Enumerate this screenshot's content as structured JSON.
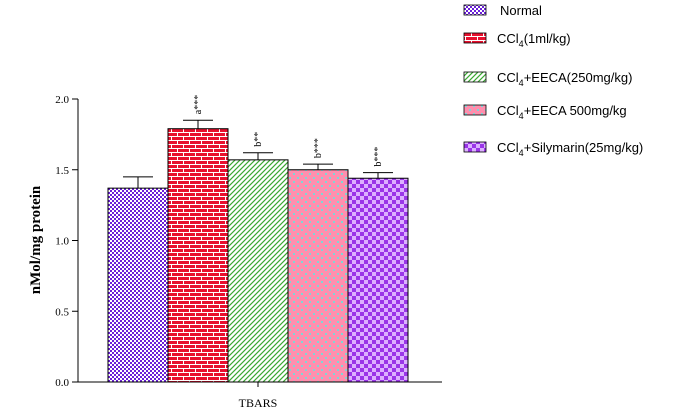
{
  "chart_data": {
    "type": "bar",
    "ylabel": "nMol/mg protein",
    "xlabel": "",
    "categories": [
      "TBARS"
    ],
    "ylim": [
      0,
      2.0
    ],
    "yticks": [
      "0.0",
      "0.5",
      "1.0",
      "1.5",
      "2.0"
    ],
    "grid": false,
    "legend_position": "top-right",
    "series": [
      {
        "name": "Normal",
        "name_parts": [
          "Normal",
          "",
          ""
        ],
        "value": 1.37,
        "error": 0.08,
        "significance": "",
        "color": "#6a1fd8",
        "pattern": "checker"
      },
      {
        "name": "CCl4(1ml/kg)",
        "name_parts": [
          "CCl",
          "4",
          "(1ml/kg)"
        ],
        "value": 1.79,
        "error": 0.06,
        "significance": "a***",
        "color": "#e8102e",
        "pattern": "brick"
      },
      {
        "name": "CCl4+EECA(250mg/kg)",
        "name_parts": [
          "CCl",
          "4",
          "+EECA(250mg/kg)"
        ],
        "value": 1.57,
        "error": 0.05,
        "significance": "b**",
        "color": "#3aa832",
        "pattern": "diagonal"
      },
      {
        "name": "CCl4+EECA 500mg/kg",
        "name_parts": [
          "CCl",
          "4",
          "+EECA 500mg/kg"
        ],
        "value": 1.5,
        "error": 0.04,
        "significance": "b***",
        "color": "#ff7fa0",
        "pattern": "dots"
      },
      {
        "name": "CCl4+Silymarin(25mg/kg)",
        "name_parts": [
          "CCl",
          "4",
          "+Silymarin(25mg/kg)"
        ],
        "value": 1.44,
        "error": 0.04,
        "significance": "b***",
        "color": "#b04cf0",
        "pattern": "checker-light"
      }
    ]
  }
}
